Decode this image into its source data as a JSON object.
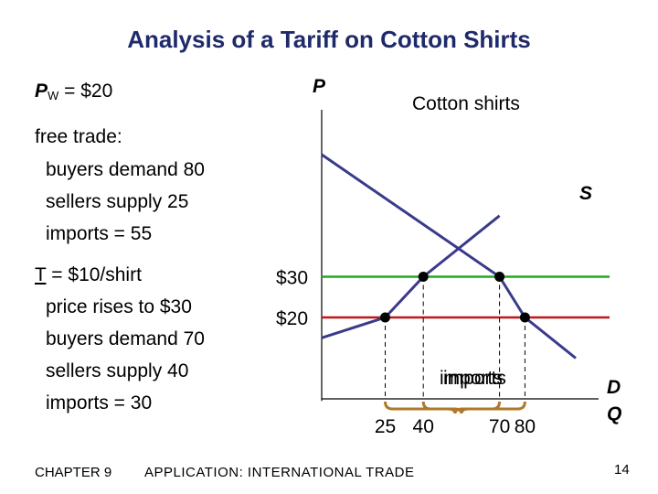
{
  "slide": {
    "title": "Analysis of a Tariff on Cotton Shirts",
    "pw_label": "P",
    "pw_sub": "W",
    "pw_value": " = $20",
    "free_trade": {
      "heading": "free trade:",
      "items": [
        "buyers demand 80",
        "sellers supply 25",
        "imports = 55"
      ]
    },
    "tariff": {
      "heading": "T = $10/shirt",
      "items": [
        "price rises to $30",
        "buyers demand 70",
        "sellers supply 40",
        "imports = 30"
      ]
    },
    "footer": {
      "chapter": "CHAPTER 9",
      "subject": "APPLICATION:  INTERNATIONAL TRADE",
      "page": "14"
    }
  },
  "chart_data": {
    "type": "line",
    "title": "Cotton shirts",
    "ylabel": "P",
    "xlabel": "Q",
    "x_ticks": [
      "25",
      "40",
      "70",
      "80"
    ],
    "y_ticks": [
      "$30",
      "$20"
    ],
    "series": [
      {
        "name": "S",
        "points": [
          [
            0,
            15
          ],
          [
            25,
            20
          ],
          [
            40,
            30
          ],
          [
            70,
            45
          ]
        ]
      },
      {
        "name": "D",
        "points": [
          [
            0,
            60
          ],
          [
            70,
            30
          ],
          [
            80,
            20
          ],
          [
            100,
            10
          ]
        ]
      }
    ],
    "price_lines": [
      {
        "label": "$30",
        "y": 30,
        "color": "#22aa22"
      },
      {
        "label": "$20",
        "y": 20,
        "color": "#c01818"
      }
    ],
    "annotations": [
      "imports",
      "imports"
    ],
    "colors": {
      "curves": "#3a3a8c",
      "brace": "#b07828"
    }
  }
}
